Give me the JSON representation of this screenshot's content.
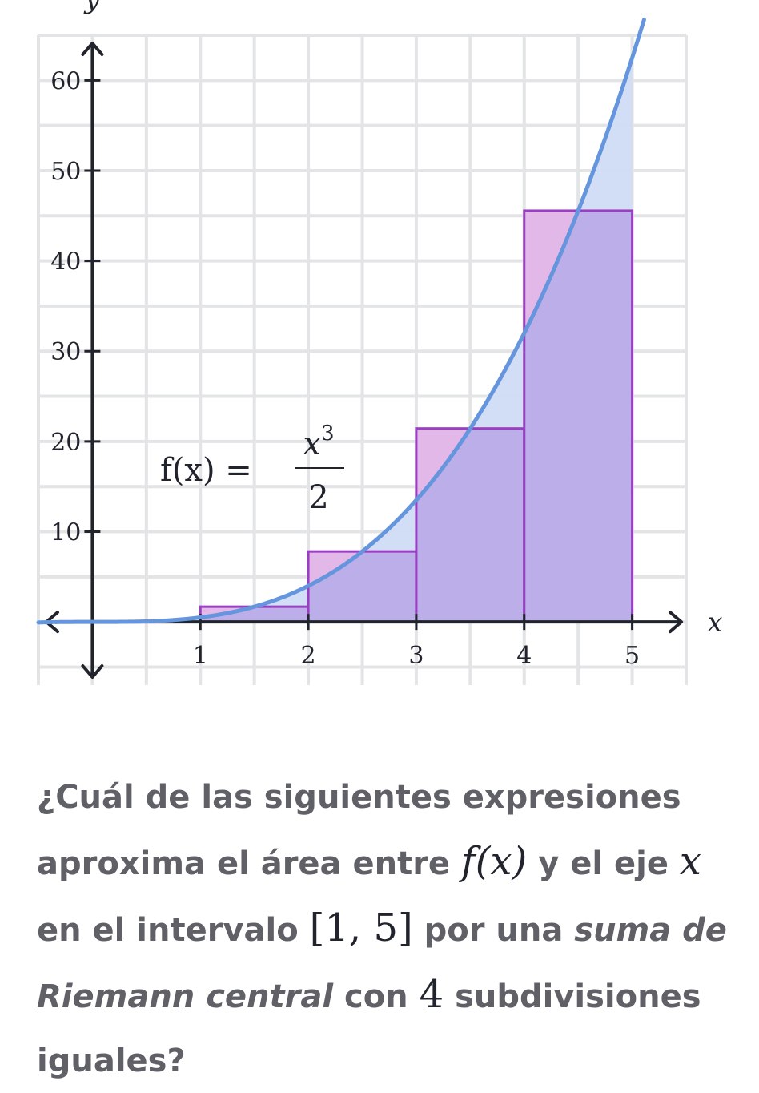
{
  "chart_data": {
    "type": "area",
    "axis": {
      "x_label": "x",
      "y_label": "y",
      "xlim": [
        -0.5,
        5.5
      ],
      "ylim": [
        -7,
        65
      ],
      "x_ticks": [
        1,
        2,
        3,
        4,
        5
      ],
      "y_ticks": [
        10,
        20,
        30,
        40,
        50,
        60
      ],
      "x_tick_labels": [
        "1",
        "2",
        "3",
        "4",
        "5"
      ],
      "y_tick_labels": [
        "10",
        "20",
        "30",
        "40",
        "50",
        "60"
      ],
      "grid": true,
      "x_grid_step": 0.5,
      "y_grid_step": 5
    },
    "function": {
      "label_lhs": "f(x) =",
      "label_num": "x",
      "label_num_exp": "3",
      "label_den": "2",
      "color": "#6495dd",
      "fill_color": "#cfdcf5",
      "fill_interval": [
        1,
        5
      ]
    },
    "rectangles": {
      "fill_color": "#b8a8e8",
      "top_fill_color": "#e4b8e8",
      "stroke_color": "#9a3fc1",
      "items": [
        {
          "x0": 1,
          "x1": 2,
          "height": 1.6875
        },
        {
          "x0": 2,
          "x1": 3,
          "height": 7.8125
        },
        {
          "x0": 3,
          "x1": 4,
          "height": 21.4375
        },
        {
          "x0": 4,
          "x1": 5,
          "height": 45.5625
        }
      ]
    }
  },
  "question": {
    "part1": "¿Cuál de las siguientes expresiones aproxima el área entre ",
    "math_fx": "f(x)",
    "part2": " y el eje ",
    "math_x": "x",
    "part3": " en el intervalo ",
    "math_interval": "[1, 5]",
    "part4": " por una ",
    "emphasis": "suma de Riemann central",
    "part5": " con ",
    "math_n": "4",
    "part6": " subdivisiones iguales?"
  }
}
